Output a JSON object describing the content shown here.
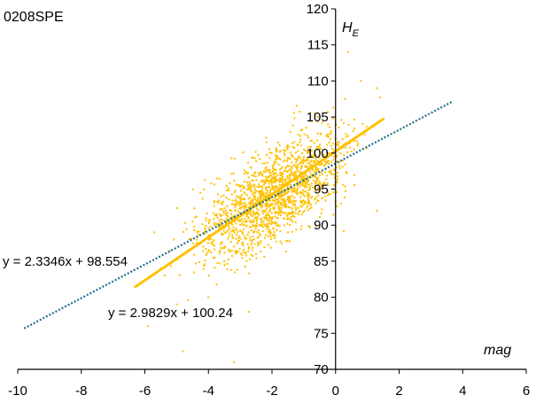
{
  "chart_data": {
    "type": "scatter",
    "title": "0208SPE",
    "xlabel": "mag",
    "ylabel_main": "H",
    "ylabel_sub": "E",
    "xlim": [
      -10,
      6
    ],
    "ylim": [
      70,
      120
    ],
    "x_ticks": [
      "-10",
      "-8",
      "-6",
      "-4",
      "-2",
      "0",
      "2",
      "4",
      "6"
    ],
    "y_ticks": [
      "70",
      "75",
      "80",
      "85",
      "90",
      "95",
      "100",
      "105",
      "110",
      "115",
      "120"
    ],
    "grid": false,
    "colors": {
      "points": "#FFC000",
      "fit_orange": "#FFC000",
      "fit_blue": "#1F6E8C",
      "axis": "#000000"
    },
    "series": [
      {
        "kind": "points",
        "cluster": {
          "x_mean": -1.9,
          "y_mean": 96.5,
          "n": 1600,
          "x_range": [
            -6.5,
            1.5
          ],
          "y_range": [
            70.5,
            114
          ]
        },
        "values_sample": [
          [
            -2.0,
            96.0
          ],
          [
            -1.5,
            97.5
          ],
          [
            -1.0,
            99.0
          ],
          [
            0.0,
            102.0
          ],
          [
            -3.0,
            93.0
          ],
          [
            -2.5,
            86.0
          ],
          [
            -3.5,
            85.0
          ],
          [
            -4.0,
            80.0
          ],
          [
            -5.0,
            79.0
          ],
          [
            -5.9,
            76.0
          ],
          [
            0.3,
            107.5
          ],
          [
            0.8,
            110.0
          ],
          [
            0.4,
            114.0
          ],
          [
            1.3,
            109.0
          ],
          [
            1.3,
            92.0
          ],
          [
            -4.8,
            72.5
          ],
          [
            -3.2,
            71.0
          ],
          [
            -5.5,
            84.0
          ],
          [
            -4.5,
            90.5
          ],
          [
            -5.7,
            89.0
          ]
        ]
      },
      {
        "kind": "line",
        "name": "y = 2.9829x + 100.24",
        "slope": 2.9829,
        "intercept": 100.24,
        "x_start": -6.3,
        "x_end": 1.5
      },
      {
        "kind": "line",
        "name": "y = 2.3346x + 98.554",
        "slope": 2.3346,
        "intercept": 98.554,
        "x_start": -9.8,
        "x_end": 3.7
      }
    ],
    "annotations": {
      "orange_eq": "y = 2.9829x + 100.24",
      "blue_eq": "y = 2.3346x + 98.554"
    }
  }
}
